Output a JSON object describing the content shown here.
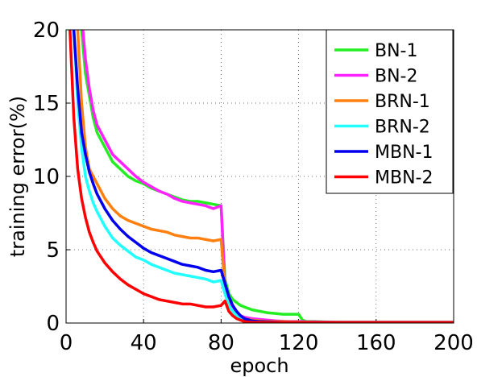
{
  "chart_data": {
    "type": "line",
    "xlabel": "epoch",
    "ylabel": "training error(%)",
    "x": [
      2,
      4,
      6,
      8,
      10,
      12,
      14,
      16,
      20,
      24,
      28,
      32,
      36,
      40,
      44,
      48,
      52,
      56,
      60,
      64,
      68,
      72,
      76,
      80,
      82,
      84,
      86,
      88,
      90,
      92,
      96,
      100,
      104,
      108,
      112,
      116,
      120,
      122,
      124,
      128,
      140,
      160,
      180,
      200
    ],
    "series": [
      {
        "name": "BN-1",
        "color": "#22ee22",
        "values": [
          null,
          null,
          null,
          20,
          17,
          15.5,
          14,
          13,
          12,
          11,
          10.5,
          10,
          9.7,
          9.5,
          9.2,
          9,
          8.8,
          8.6,
          8.4,
          8.3,
          8.3,
          8.2,
          8.1,
          8.0,
          3,
          2,
          1.6,
          1.4,
          1.2,
          1.1,
          0.9,
          0.8,
          0.7,
          0.65,
          0.6,
          0.6,
          0.6,
          0.2,
          0.1,
          0.1,
          0.05,
          0.05,
          0.05,
          0.05
        ]
      },
      {
        "name": "BN-2",
        "color": "#ff22ff",
        "values": [
          null,
          null,
          null,
          21,
          18,
          16,
          14.5,
          13.5,
          12.5,
          11.5,
          11,
          10.5,
          10,
          9.6,
          9.3,
          9.0,
          8.8,
          8.5,
          8.3,
          8.2,
          8.1,
          8.0,
          7.8,
          8.0,
          2.5,
          1.5,
          1.0,
          0.7,
          0.5,
          0.4,
          0.3,
          0.25,
          0.2,
          0.15,
          0.12,
          0.1,
          0.1,
          0.1,
          0.08,
          0.08,
          0.05,
          0.05,
          0.05,
          0.05
        ]
      },
      {
        "name": "BRN-1",
        "color": "#ff8010",
        "values": [
          null,
          null,
          20,
          15,
          12,
          10.5,
          10,
          9.5,
          8.5,
          7.8,
          7.3,
          7,
          6.8,
          6.6,
          6.4,
          6.3,
          6.2,
          6.0,
          5.9,
          5.8,
          5.8,
          5.7,
          5.6,
          5.7,
          2.5,
          1.2,
          0.8,
          0.6,
          0.4,
          0.3,
          0.2,
          0.15,
          0.12,
          0.1,
          0.1,
          0.08,
          0.08,
          0.06,
          0.06,
          0.05,
          0.05,
          0.05,
          0.05,
          0.05
        ]
      },
      {
        "name": "BRN-2",
        "color": "#22ffff",
        "values": [
          null,
          20,
          15,
          12,
          10,
          9,
          8.2,
          7.6,
          6.6,
          5.8,
          5.3,
          4.9,
          4.5,
          4.3,
          4.0,
          3.8,
          3.6,
          3.4,
          3.3,
          3.2,
          3.1,
          3.0,
          2.8,
          2.9,
          2.0,
          1.2,
          0.8,
          0.5,
          0.3,
          0.2,
          0.1,
          0.08,
          0.06,
          0.05,
          0.05,
          0.05,
          0.05,
          0.05,
          0.05,
          0.05,
          0.05,
          0.05,
          0.05,
          0.05
        ]
      },
      {
        "name": "MBN-1",
        "color": "#0000ee",
        "values": [
          null,
          20,
          16,
          13,
          11.5,
          10.3,
          9.5,
          8.8,
          7.8,
          7,
          6.4,
          5.9,
          5.5,
          5.1,
          4.8,
          4.6,
          4.4,
          4.2,
          4.0,
          3.9,
          3.8,
          3.6,
          3.5,
          3.6,
          2.7,
          1.8,
          1.2,
          0.8,
          0.5,
          0.3,
          0.15,
          0.1,
          0.08,
          0.06,
          0.05,
          0.05,
          0.05,
          0.05,
          0.05,
          0.05,
          0.05,
          0.05,
          0.05,
          0.05
        ]
      },
      {
        "name": "MBN-2",
        "color": "#ff0000",
        "values": [
          20,
          14,
          10.5,
          8.5,
          7.2,
          6.2,
          5.5,
          4.9,
          4.1,
          3.5,
          3.0,
          2.6,
          2.3,
          2.0,
          1.8,
          1.6,
          1.5,
          1.4,
          1.3,
          1.3,
          1.2,
          1.1,
          1.1,
          1.2,
          1.5,
          0.8,
          0.5,
          0.3,
          0.2,
          0.1,
          0.05,
          0.05,
          0.04,
          0.04,
          0.04,
          0.04,
          0.04,
          0.04,
          0.04,
          0.04,
          0.04,
          0.04,
          0.04,
          0.04
        ]
      }
    ],
    "xlim": [
      0,
      200
    ],
    "xticks": [
      0,
      40,
      80,
      120,
      160,
      200
    ],
    "ylim": [
      0,
      20
    ],
    "yticks": [
      0,
      5,
      10,
      15,
      20
    ],
    "grid": true,
    "legend": "upper right"
  }
}
